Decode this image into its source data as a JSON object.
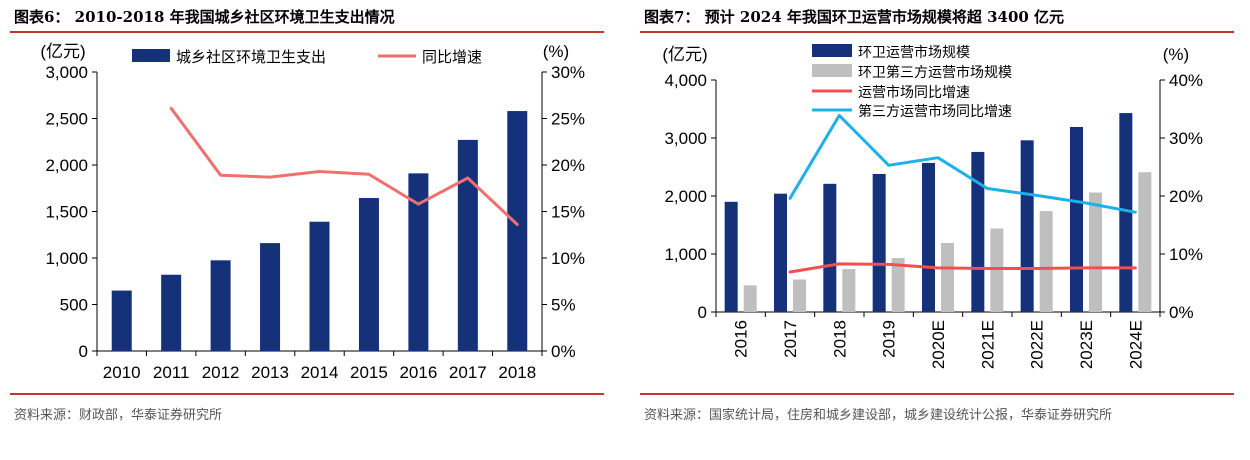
{
  "chart_data": [
    {
      "type": "bar",
      "title": "图表6：  2010-2018 年我国城乡社区环境卫生支出情况",
      "source": "资料来源：财政部，华泰证券研究所",
      "ylabel": "(亿元)",
      "y2label": "(%)",
      "categories": [
        "2010",
        "2011",
        "2012",
        "2013",
        "2014",
        "2015",
        "2016",
        "2017",
        "2018"
      ],
      "ylim": [
        0,
        3000
      ],
      "y_ticks": [
        "0",
        "500",
        "1,000",
        "1,500",
        "2,000",
        "2,500",
        "3,000"
      ],
      "y2lim": [
        0,
        30
      ],
      "y2_ticks": [
        "0%",
        "5%",
        "10%",
        "15%",
        "20%",
        "25%",
        "30%"
      ],
      "legend_position": "top",
      "colors": {
        "bar": "#14317a",
        "line": "#f07070",
        "axis": "#000000"
      },
      "series": [
        {
          "name": "城乡社区环境卫生支出",
          "kind": "bar",
          "axis": "left",
          "values": [
            650,
            820,
            975,
            1160,
            1390,
            1645,
            1910,
            2270,
            2580
          ]
        },
        {
          "name": "同比增速",
          "kind": "line",
          "axis": "right",
          "values": [
            null,
            26.1,
            18.9,
            18.7,
            19.3,
            19.0,
            15.8,
            18.6,
            13.6
          ]
        }
      ]
    },
    {
      "type": "bar",
      "title": "图表7：  预计 2024 年我国环卫运营市场规模将超 3400 亿元",
      "source": "资料来源：国家统计局，住房和城乡建设部，城乡建设统计公报，华泰证券研究所",
      "ylabel": "(亿元)",
      "y2label": "(%)",
      "categories": [
        "2016",
        "2017",
        "2018",
        "2019",
        "2020E",
        "2021E",
        "2022E",
        "2023E",
        "2024E"
      ],
      "ylim": [
        0,
        4000
      ],
      "y_ticks": [
        "0",
        "1,000",
        "2,000",
        "3,000",
        "4,000"
      ],
      "y2lim": [
        0,
        40
      ],
      "y2_ticks": [
        "0%",
        "10%",
        "20%",
        "30%",
        "40%"
      ],
      "legend_position": "top-left",
      "colors": {
        "bar1": "#14317a",
        "bar2": "#bfbfbf",
        "line1": "#f05050",
        "line2": "#1fb0e8",
        "axis": "#000000"
      },
      "series": [
        {
          "name": "环卫运营市场规模",
          "kind": "bar",
          "axis": "left",
          "values": [
            1900,
            2040,
            2210,
            2380,
            2570,
            2760,
            2960,
            3190,
            3430
          ]
        },
        {
          "name": "环卫第三方运营市场规模",
          "kind": "bar",
          "axis": "left",
          "values": [
            460,
            560,
            740,
            930,
            1190,
            1440,
            1740,
            2060,
            2410
          ]
        },
        {
          "name": "运营市场同比增速",
          "kind": "line",
          "axis": "right",
          "values": [
            null,
            6.9,
            8.3,
            8.2,
            7.6,
            7.5,
            7.5,
            7.6,
            7.6
          ]
        },
        {
          "name": "第三方运营市场同比增速",
          "kind": "line",
          "axis": "right",
          "values": [
            null,
            19.6,
            33.9,
            25.3,
            26.6,
            21.3,
            20.1,
            18.8,
            17.2
          ]
        }
      ]
    }
  ]
}
